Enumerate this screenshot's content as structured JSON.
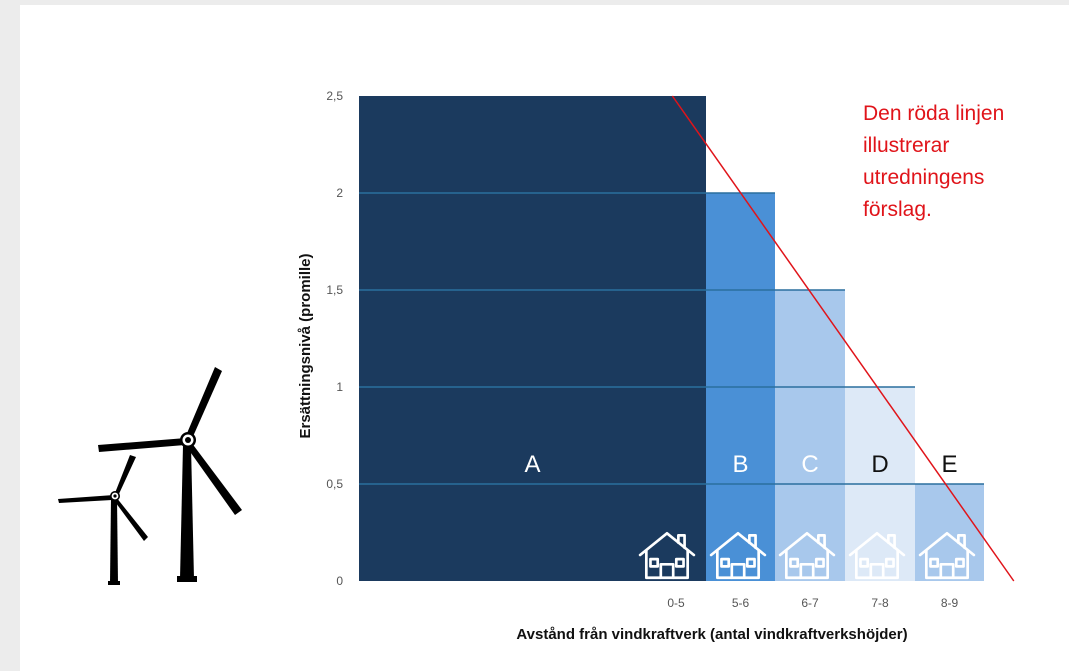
{
  "chart_data": {
    "type": "bar",
    "categories": [
      "0-5",
      "5-6",
      "6-7",
      "7-8",
      "8-9"
    ],
    "category_letters": [
      "A",
      "B",
      "C",
      "D",
      "E"
    ],
    "values": [
      2.5,
      2.0,
      1.5,
      1.0,
      0.5
    ],
    "bar_colors": [
      "#1b3a5e",
      "#4a90d6",
      "#a8c8ec",
      "#dde9f7",
      "#a8c8ec"
    ],
    "letter_colors": [
      "#ffffff",
      "#ffffff",
      "#ffffff",
      "#111111",
      "#111111"
    ],
    "ylim": [
      0,
      2.5
    ],
    "yticks": [
      "0",
      "0,5",
      "1",
      "1,5",
      "2",
      "2,5"
    ],
    "ytick_values": [
      0,
      0.5,
      1,
      1.5,
      2,
      2.5
    ],
    "xlabel": "Avstånd från vindkraftverk (antal vindkraftverkshöjder)",
    "ylabel": "Ersättningsnivå  (promille)",
    "grid": true,
    "grid_color": "#2a6f9e",
    "proposal_line": {
      "color": "#e0141a",
      "points": [
        [
          2.7,
          2.5
        ],
        [
          9.4,
          0.0
        ]
      ]
    },
    "annotation": [
      "Den röda linjen",
      "illustrerar",
      "utredningens",
      "förslag."
    ],
    "house_icons": [
      "house-icon",
      "house-icon",
      "house-icon",
      "house-icon",
      "house-icon"
    ],
    "decoration": "wind-turbine-icon"
  }
}
